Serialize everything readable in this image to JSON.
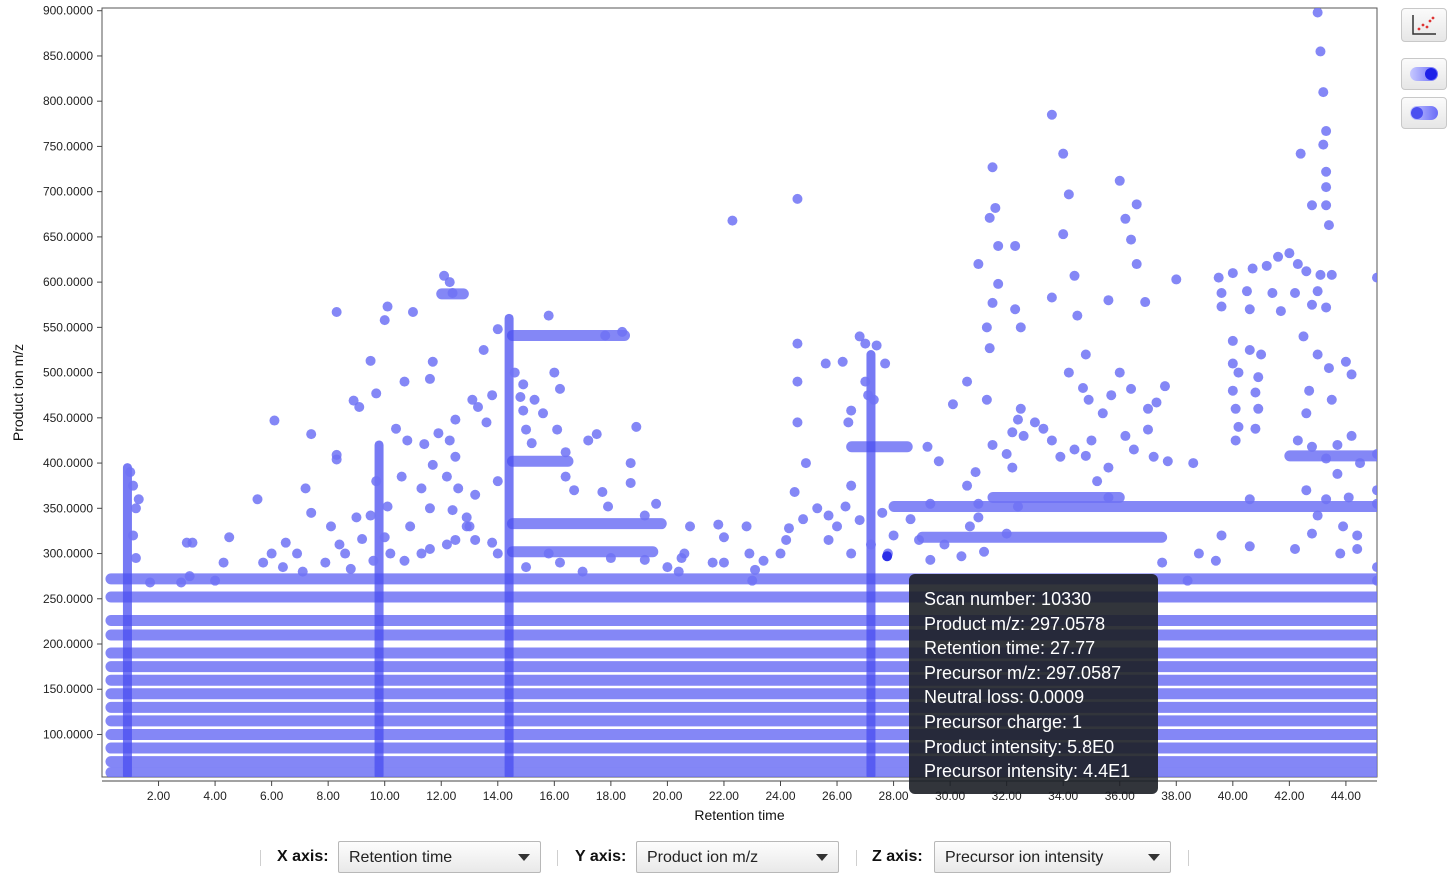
{
  "chart_data": {
    "type": "scatter",
    "xlabel": "Retention time",
    "ylabel": "Product ion m/z",
    "xlim": [
      0,
      45.1
    ],
    "ylim": [
      53,
      903
    ],
    "x_ticks": [
      "2.00",
      "4.00",
      "6.00",
      "8.00",
      "10.00",
      "12.00",
      "14.00",
      "16.00",
      "18.00",
      "20.00",
      "22.00",
      "24.00",
      "26.00",
      "28.00",
      "30.00",
      "32.00",
      "34.00",
      "36.00",
      "38.00",
      "40.00",
      "42.00",
      "44.00"
    ],
    "y_ticks": [
      "100.0000",
      "150.0000",
      "200.0000",
      "250.0000",
      "300.0000",
      "350.0000",
      "400.0000",
      "450.0000",
      "500.0000",
      "550.0000",
      "600.0000",
      "650.0000",
      "700.0000",
      "750.0000",
      "800.0000",
      "850.0000",
      "900.0000"
    ],
    "point_color": "#6f72f5",
    "dense_bands": [
      {
        "y": 272,
        "x0": 0.3,
        "x1": 45.1
      },
      {
        "y": 252,
        "x0": 0.3,
        "x1": 45.1
      },
      {
        "y": 226,
        "x0": 0.3,
        "x1": 45.1
      },
      {
        "y": 210,
        "x0": 0.3,
        "x1": 45.1
      },
      {
        "y": 190,
        "x0": 0.3,
        "x1": 45.1
      },
      {
        "y": 175,
        "x0": 0.3,
        "x1": 45.1
      },
      {
        "y": 160,
        "x0": 0.3,
        "x1": 45.1
      },
      {
        "y": 145,
        "x0": 0.3,
        "x1": 45.1
      },
      {
        "y": 130,
        "x0": 0.3,
        "x1": 45.1
      },
      {
        "y": 115,
        "x0": 0.3,
        "x1": 45.1
      },
      {
        "y": 100,
        "x0": 0.3,
        "x1": 45.1
      },
      {
        "y": 85,
        "x0": 0.3,
        "x1": 45.1
      },
      {
        "y": 70,
        "x0": 0.3,
        "x1": 45.1
      },
      {
        "y": 58,
        "x0": 0.3,
        "x1": 45.1
      },
      {
        "y": 352,
        "x0": 28.0,
        "x1": 45.1
      },
      {
        "y": 333,
        "x0": 14.5,
        "x1": 19.8
      },
      {
        "y": 302,
        "x0": 14.5,
        "x1": 19.5
      },
      {
        "y": 541,
        "x0": 14.5,
        "x1": 18.5
      },
      {
        "y": 402,
        "x0": 14.5,
        "x1": 16.5
      },
      {
        "y": 318,
        "x0": 29.0,
        "x1": 37.5
      },
      {
        "y": 408,
        "x0": 42.0,
        "x1": 45.1
      },
      {
        "y": 362,
        "x0": 31.5,
        "x1": 36.0
      },
      {
        "y": 418,
        "x0": 26.5,
        "x1": 28.5
      },
      {
        "y": 587,
        "x0": 12.0,
        "x1": 12.8
      }
    ],
    "vertical_columns": [
      {
        "x": 0.9,
        "y0": 55,
        "y1": 395
      },
      {
        "x": 14.4,
        "y0": 55,
        "y1": 560
      },
      {
        "x": 27.2,
        "y0": 55,
        "y1": 520
      },
      {
        "x": 9.8,
        "y0": 55,
        "y1": 420
      }
    ],
    "points": [
      [
        43.0,
        898
      ],
      [
        43.1,
        855
      ],
      [
        43.2,
        810
      ],
      [
        43.3,
        767
      ],
      [
        43.2,
        752
      ],
      [
        43.3,
        722
      ],
      [
        43.3,
        705
      ],
      [
        42.4,
        742
      ],
      [
        42.8,
        685
      ],
      [
        43.3,
        685
      ],
      [
        43.4,
        663
      ],
      [
        33.6,
        785
      ],
      [
        34.0,
        742
      ],
      [
        34.2,
        697
      ],
      [
        31.5,
        727
      ],
      [
        36.0,
        712
      ],
      [
        36.6,
        686
      ],
      [
        36.2,
        670
      ],
      [
        31.6,
        682
      ],
      [
        31.4,
        671
      ],
      [
        34.0,
        653
      ],
      [
        32.3,
        640
      ],
      [
        31.7,
        640
      ],
      [
        31.0,
        620
      ],
      [
        36.4,
        647
      ],
      [
        36.6,
        620
      ],
      [
        38.0,
        603
      ],
      [
        34.4,
        607
      ],
      [
        34.5,
        563
      ],
      [
        35.6,
        580
      ],
      [
        36.9,
        578
      ],
      [
        31.7,
        598
      ],
      [
        31.5,
        577
      ],
      [
        33.6,
        583
      ],
      [
        32.3,
        570
      ],
      [
        32.5,
        550
      ],
      [
        31.3,
        550
      ],
      [
        34.8,
        520
      ],
      [
        31.4,
        527
      ],
      [
        22.3,
        668
      ],
      [
        24.6,
        692
      ],
      [
        8.3,
        567
      ],
      [
        10.1,
        573
      ],
      [
        11.0,
        567
      ],
      [
        10.0,
        558
      ],
      [
        12.1,
        607
      ],
      [
        12.3,
        600
      ],
      [
        12.4,
        588
      ],
      [
        13.5,
        525
      ],
      [
        14.0,
        548
      ],
      [
        15.8,
        563
      ],
      [
        17.8,
        541
      ],
      [
        18.4,
        545
      ],
      [
        9.5,
        513
      ],
      [
        9.7,
        477
      ],
      [
        11.7,
        512
      ],
      [
        10.7,
        490
      ],
      [
        11.6,
        493
      ],
      [
        13.8,
        475
      ],
      [
        14.8,
        473
      ],
      [
        14.9,
        458
      ],
      [
        13.1,
        470
      ],
      [
        13.3,
        462
      ],
      [
        8.9,
        469
      ],
      [
        9.1,
        462
      ],
      [
        12.5,
        448
      ],
      [
        13.6,
        445
      ],
      [
        14.6,
        500
      ],
      [
        14.9,
        487
      ],
      [
        15.3,
        470
      ],
      [
        16.2,
        482
      ],
      [
        16.0,
        500
      ],
      [
        15.6,
        455
      ],
      [
        15.0,
        437
      ],
      [
        16.1,
        437
      ],
      [
        15.2,
        422
      ],
      [
        16.4,
        412
      ],
      [
        6.1,
        447
      ],
      [
        7.4,
        432
      ],
      [
        8.3,
        409
      ],
      [
        8.3,
        404
      ],
      [
        10.4,
        438
      ],
      [
        10.8,
        425
      ],
      [
        11.9,
        433
      ],
      [
        12.3,
        425
      ],
      [
        11.4,
        421
      ],
      [
        12.5,
        407
      ],
      [
        11.7,
        398
      ],
      [
        12.2,
        385
      ],
      [
        12.6,
        372
      ],
      [
        13.2,
        365
      ],
      [
        14.0,
        380
      ],
      [
        16.4,
        385
      ],
      [
        16.7,
        370
      ],
      [
        17.2,
        425
      ],
      [
        17.5,
        432
      ],
      [
        18.9,
        440
      ],
      [
        18.7,
        400
      ],
      [
        18.7,
        378
      ],
      [
        17.7,
        368
      ],
      [
        17.9,
        352
      ],
      [
        19.2,
        342
      ],
      [
        19.6,
        355
      ],
      [
        20.8,
        330
      ],
      [
        21.8,
        332
      ],
      [
        22.0,
        318
      ],
      [
        20.6,
        300
      ],
      [
        9.0,
        340
      ],
      [
        9.5,
        342
      ],
      [
        10.1,
        352
      ],
      [
        9.7,
        380
      ],
      [
        10.6,
        385
      ],
      [
        11.3,
        372
      ],
      [
        11.6,
        350
      ],
      [
        12.4,
        348
      ],
      [
        12.9,
        340
      ],
      [
        12.9,
        330
      ],
      [
        10.9,
        330
      ],
      [
        10.0,
        318
      ],
      [
        9.2,
        316
      ],
      [
        8.4,
        310
      ],
      [
        8.1,
        330
      ],
      [
        7.2,
        372
      ],
      [
        7.4,
        345
      ],
      [
        6.5,
        312
      ],
      [
        6.9,
        300
      ],
      [
        5.5,
        360
      ],
      [
        6.0,
        300
      ],
      [
        4.5,
        318
      ],
      [
        4.3,
        290
      ],
      [
        3.0,
        312
      ],
      [
        3.2,
        312
      ],
      [
        4.0,
        270
      ],
      [
        7.9,
        290
      ],
      [
        8.8,
        283
      ],
      [
        24.6,
        532
      ],
      [
        24.6,
        490
      ],
      [
        25.6,
        510
      ],
      [
        26.2,
        512
      ],
      [
        27.0,
        532
      ],
      [
        27.4,
        530
      ],
      [
        27.7,
        510
      ],
      [
        26.8,
        540
      ],
      [
        27.0,
        490
      ],
      [
        27.1,
        475
      ],
      [
        27.3,
        470
      ],
      [
        26.5,
        458
      ],
      [
        26.4,
        445
      ],
      [
        24.6,
        445
      ],
      [
        24.9,
        400
      ],
      [
        24.5,
        368
      ],
      [
        25.3,
        350
      ],
      [
        24.8,
        338
      ],
      [
        25.7,
        342
      ],
      [
        26.3,
        352
      ],
      [
        26.5,
        375
      ],
      [
        26.8,
        337
      ],
      [
        27.6,
        345
      ],
      [
        28.0,
        320
      ],
      [
        27.8,
        300
      ],
      [
        26.0,
        330
      ],
      [
        27.2,
        310
      ],
      [
        26.5,
        300
      ],
      [
        25.7,
        315
      ],
      [
        24.3,
        328
      ],
      [
        24.2,
        315
      ],
      [
        24.0,
        300
      ],
      [
        22.8,
        330
      ],
      [
        22.9,
        300
      ],
      [
        23.1,
        282
      ],
      [
        21.6,
        290
      ],
      [
        20.4,
        280
      ],
      [
        19.2,
        293
      ],
      [
        18.0,
        295
      ],
      [
        29.2,
        418
      ],
      [
        29.6,
        402
      ],
      [
        29.3,
        355
      ],
      [
        28.6,
        338
      ],
      [
        28.9,
        315
      ],
      [
        29.3,
        293
      ],
      [
        29.8,
        310
      ],
      [
        30.7,
        330
      ],
      [
        31.0,
        340
      ],
      [
        30.1,
        465
      ],
      [
        30.6,
        490
      ],
      [
        31.3,
        470
      ],
      [
        31.5,
        420
      ],
      [
        30.9,
        390
      ],
      [
        30.6,
        375
      ],
      [
        31.0,
        355
      ],
      [
        32.2,
        395
      ],
      [
        32.4,
        352
      ],
      [
        32.0,
        322
      ],
      [
        31.2,
        302
      ],
      [
        30.4,
        297
      ],
      [
        32.4,
        448
      ],
      [
        32.2,
        434
      ],
      [
        32.0,
        410
      ],
      [
        32.6,
        430
      ],
      [
        32.5,
        460
      ],
      [
        33.0,
        445
      ],
      [
        33.3,
        438
      ],
      [
        33.6,
        425
      ],
      [
        34.4,
        415
      ],
      [
        34.8,
        408
      ],
      [
        35.0,
        425
      ],
      [
        35.6,
        395
      ],
      [
        36.5,
        415
      ],
      [
        37.0,
        437
      ],
      [
        37.2,
        407
      ],
      [
        37.7,
        402
      ],
      [
        38.6,
        400
      ],
      [
        33.9,
        407
      ],
      [
        34.9,
        470
      ],
      [
        35.4,
        455
      ],
      [
        34.7,
        483
      ],
      [
        34.2,
        500
      ],
      [
        36.0,
        500
      ],
      [
        35.7,
        475
      ],
      [
        36.4,
        482
      ],
      [
        37.3,
        467
      ],
      [
        37.6,
        485
      ],
      [
        37.0,
        460
      ],
      [
        36.2,
        430
      ],
      [
        35.2,
        380
      ],
      [
        35.6,
        362
      ],
      [
        39.5,
        605
      ],
      [
        40.0,
        610
      ],
      [
        40.7,
        615
      ],
      [
        41.2,
        618
      ],
      [
        41.6,
        628
      ],
      [
        42.0,
        632
      ],
      [
        42.3,
        620
      ],
      [
        42.6,
        612
      ],
      [
        43.1,
        608
      ],
      [
        43.5,
        608
      ],
      [
        45.1,
        605
      ],
      [
        39.6,
        588
      ],
      [
        40.5,
        590
      ],
      [
        41.4,
        588
      ],
      [
        42.2,
        588
      ],
      [
        43.0,
        590
      ],
      [
        39.6,
        573
      ],
      [
        40.6,
        570
      ],
      [
        41.7,
        568
      ],
      [
        42.8,
        575
      ],
      [
        43.3,
        572
      ],
      [
        40.0,
        535
      ],
      [
        40.6,
        525
      ],
      [
        41.0,
        520
      ],
      [
        42.5,
        540
      ],
      [
        43.0,
        520
      ],
      [
        43.4,
        505
      ],
      [
        44.0,
        512
      ],
      [
        44.2,
        498
      ],
      [
        42.7,
        480
      ],
      [
        43.5,
        470
      ],
      [
        40.0,
        510
      ],
      [
        40.2,
        500
      ],
      [
        40.0,
        480
      ],
      [
        40.1,
        460
      ],
      [
        40.2,
        440
      ],
      [
        40.1,
        425
      ],
      [
        40.9,
        495
      ],
      [
        40.8,
        478
      ],
      [
        40.9,
        460
      ],
      [
        40.8,
        438
      ],
      [
        42.6,
        455
      ],
      [
        42.3,
        425
      ],
      [
        42.8,
        418
      ],
      [
        43.3,
        405
      ],
      [
        43.7,
        420
      ],
      [
        44.2,
        430
      ],
      [
        43.7,
        388
      ],
      [
        44.5,
        400
      ],
      [
        45.1,
        410
      ],
      [
        42.6,
        370
      ],
      [
        43.3,
        360
      ],
      [
        44.1,
        362
      ],
      [
        45.1,
        370
      ],
      [
        40.6,
        308
      ],
      [
        42.2,
        305
      ],
      [
        43.8,
        300
      ],
      [
        44.4,
        320
      ],
      [
        43.9,
        330
      ],
      [
        43.0,
        342
      ],
      [
        42.8,
        322
      ],
      [
        40.6,
        360
      ],
      [
        39.6,
        320
      ],
      [
        38.8,
        300
      ],
      [
        37.5,
        290
      ],
      [
        38.4,
        270
      ],
      [
        39.4,
        292
      ],
      [
        45.1,
        355
      ],
      [
        44.4,
        305
      ],
      [
        45.1,
        285
      ],
      [
        45.1,
        270
      ],
      [
        22.0,
        290
      ],
      [
        23.4,
        292
      ],
      [
        23.0,
        270
      ],
      [
        20.5,
        295
      ],
      [
        20.0,
        285
      ],
      [
        17.0,
        280
      ],
      [
        16.2,
        290
      ],
      [
        15.8,
        300
      ],
      [
        15.0,
        285
      ],
      [
        14.0,
        300
      ],
      [
        13.8,
        312
      ],
      [
        13.2,
        315
      ],
      [
        13.0,
        330
      ],
      [
        12.5,
        315
      ],
      [
        12.2,
        310
      ],
      [
        11.6,
        305
      ],
      [
        11.3,
        300
      ],
      [
        10.7,
        292
      ],
      [
        10.2,
        300
      ],
      [
        9.6,
        292
      ],
      [
        8.6,
        300
      ],
      [
        7.1,
        280
      ],
      [
        6.4,
        285
      ],
      [
        5.7,
        290
      ],
      [
        3.1,
        275
      ],
      [
        2.8,
        268
      ],
      [
        1.7,
        268
      ],
      [
        1.2,
        295
      ],
      [
        1.1,
        320
      ],
      [
        1.2,
        350
      ],
      [
        1.1,
        375
      ],
      [
        1.3,
        360
      ],
      [
        1.0,
        390
      ]
    ]
  },
  "sidebar": {
    "scatter_button_icon": "scatter-plot-icon",
    "toggle_button_1_icon": "toggle-icon",
    "toggle_button_2_icon": "toggle-icon"
  },
  "tooltip": {
    "lines": [
      "Scan number: 10330",
      "Product m/z: 297.0578",
      "Retention time: 27.77",
      "Precursor m/z: 297.0587",
      "Neutral loss: 0.0009",
      "Precursor charge: 1",
      "Product intensity: 5.8E0",
      "Precursor intensity: 4.4E1"
    ],
    "hover_point": {
      "x": 27.77,
      "y": 297.0578
    }
  },
  "controls": {
    "x_axis": {
      "label": "X axis:",
      "value": "Retention time"
    },
    "y_axis": {
      "label": "Y axis:",
      "value": "Product ion m/z"
    },
    "z_axis": {
      "label": "Z axis:",
      "value": "Precursor ion intensity"
    }
  }
}
